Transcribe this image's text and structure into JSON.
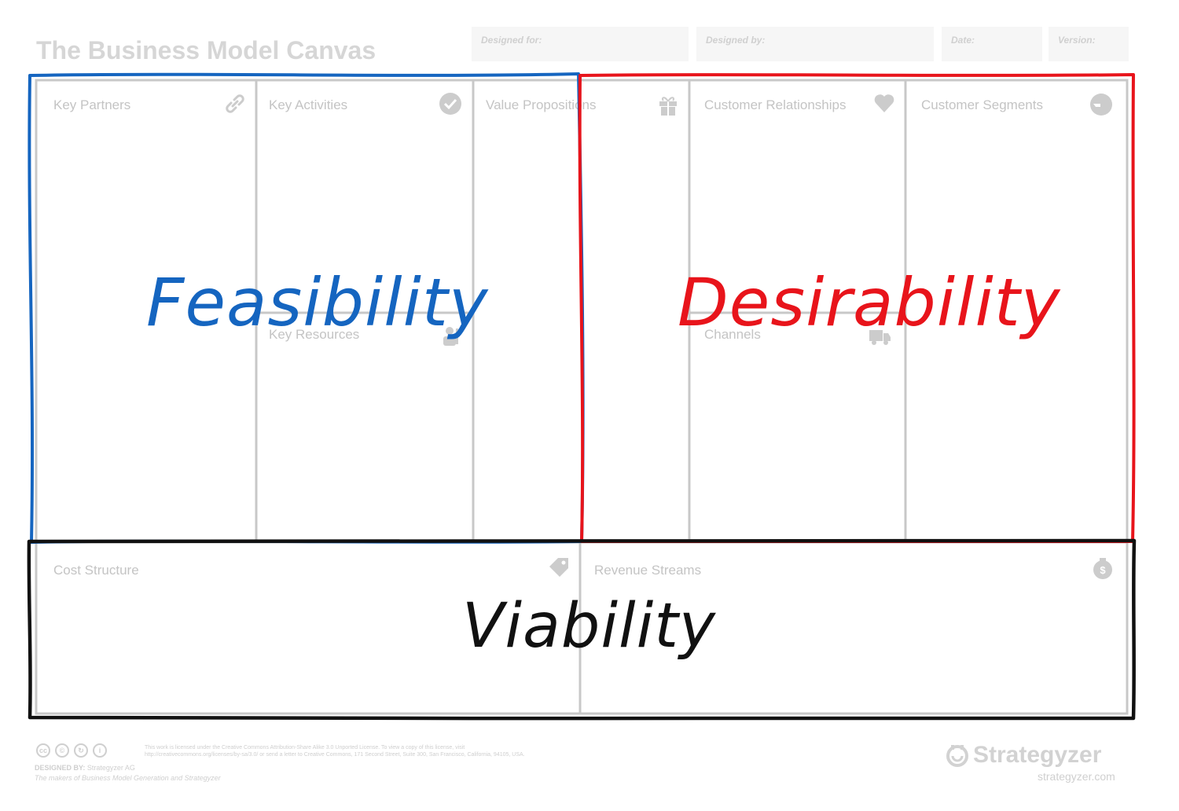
{
  "canvas": {
    "title": "The Business Model Canvas",
    "meta": [
      {
        "label": "Designed for:"
      },
      {
        "label": "Designed by:"
      },
      {
        "label": "Date:"
      },
      {
        "label": "Version:"
      }
    ],
    "blocks": {
      "key_partners": {
        "label": "Key Partners",
        "icon": "link-icon"
      },
      "key_activities": {
        "label": "Key Activities",
        "icon": "check-circle-icon"
      },
      "key_resources": {
        "label": "Key Resources",
        "icon": "worker-icon"
      },
      "value_propositions": {
        "label": "Value Propositions",
        "icon": "gift-icon"
      },
      "customer_relationships": {
        "label": "Customer Relationships",
        "icon": "heart-icon"
      },
      "channels": {
        "label": "Channels",
        "icon": "truck-icon"
      },
      "customer_segments": {
        "label": "Customer Segments",
        "icon": "head-icon"
      },
      "cost_structure": {
        "label": "Cost Structure",
        "icon": "tag-icon"
      },
      "revenue_streams": {
        "label": "Revenue Streams",
        "icon": "money-bag-icon"
      }
    }
  },
  "annotations": {
    "feasibility": {
      "text": "Feasibility",
      "color": "#1565c0"
    },
    "desirability": {
      "text": "Desirability",
      "color": "#e8141b"
    },
    "viability": {
      "text": "Viability",
      "color": "#111111"
    }
  },
  "footer": {
    "license_line1": "This work is licensed under the Creative Commons Attribution-Share Alike 3.0 Unported License. To view a copy of this license, visit",
    "license_line2": "http://creativecommons.org/licenses/by-sa/3.0/ or send a letter to Creative Commons, 171 Second Street, Suite 300, San Francisco, California, 94105, USA.",
    "designed_by_label": "DESIGNED BY:",
    "designed_by_value": "Strategyzer AG",
    "makers_line": "The makers of Business Model Generation and Strategyzer",
    "brand": "Strategyzer",
    "brand_url": "strategyzer.com"
  },
  "colors": {
    "grid_line": "#c8c8c8",
    "label_gray": "#c4c4c4",
    "feasibility_border": "#1565c0",
    "desirability_border": "#e8141b",
    "viability_border": "#111111"
  }
}
